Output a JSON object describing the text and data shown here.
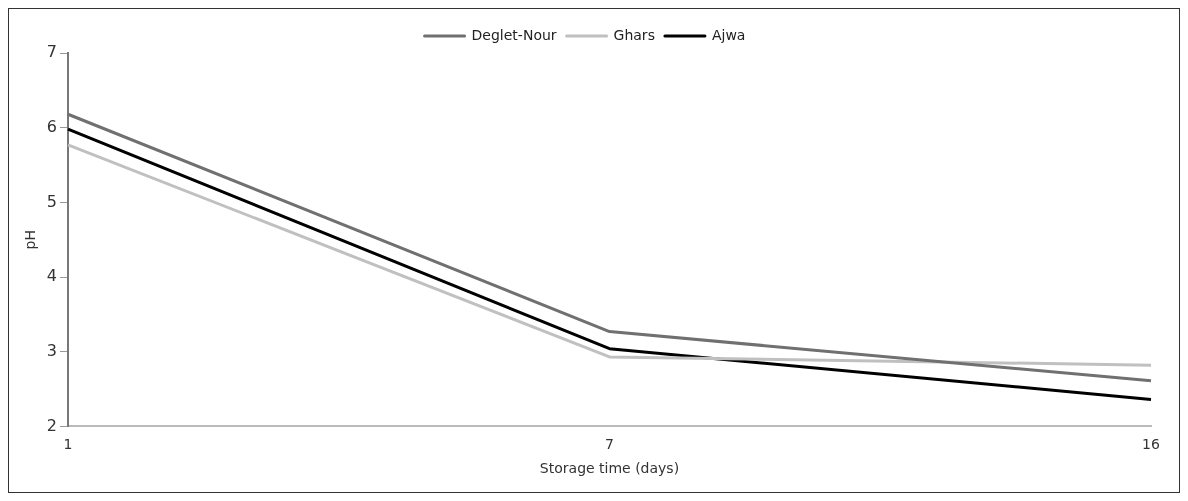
{
  "chart_data": {
    "type": "line",
    "xlabel": "Storage time (days)",
    "ylabel": "pH",
    "categories": [
      "1",
      "7",
      "16"
    ],
    "series": [
      {
        "name": "Deglet-Nour",
        "color": "#707070",
        "values": [
          6.18,
          3.27,
          2.61
        ]
      },
      {
        "name": "Ghars",
        "color": "#c0c0c0",
        "values": [
          5.77,
          2.93,
          2.82
        ]
      },
      {
        "name": "Ajwa",
        "color": "#000000",
        "values": [
          5.98,
          3.04,
          2.36
        ]
      }
    ],
    "ylim": [
      2,
      7
    ],
    "yticks": [
      2,
      3,
      4,
      5,
      6,
      7
    ],
    "grid": false,
    "legend": "top",
    "marker": "none",
    "line_style": "solid"
  }
}
